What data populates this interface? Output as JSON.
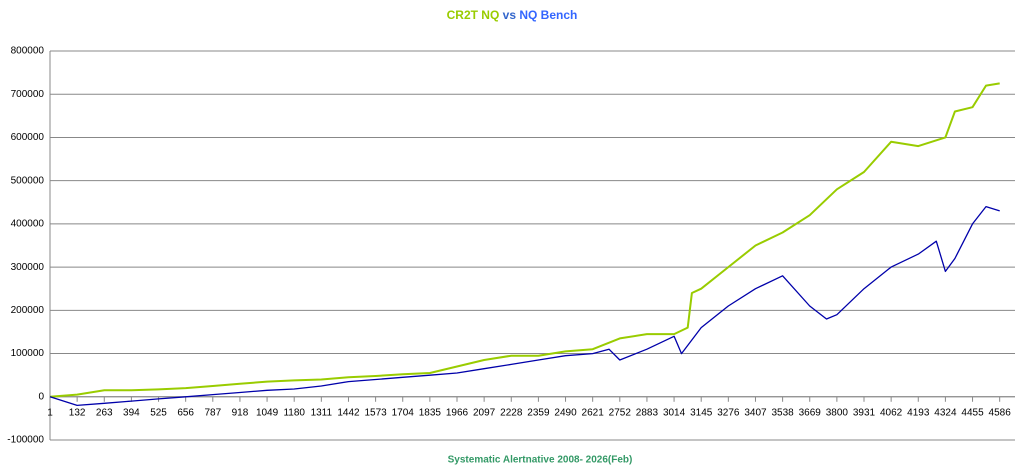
{
  "chart_data": {
    "type": "line",
    "title_connector": "vs",
    "x_label": "Systematic Alertnative 2008- 2026(Feb)",
    "xlim": [
      1,
      4660
    ],
    "xticks": [
      1,
      132,
      263,
      394,
      525,
      656,
      787,
      918,
      1049,
      1180,
      1311,
      1442,
      1573,
      1704,
      1835,
      1966,
      2097,
      2228,
      2359,
      2490,
      2621,
      2752,
      2883,
      3014,
      3145,
      3276,
      3407,
      3538,
      3669,
      3800,
      3931,
      4062,
      4193,
      4324,
      4455,
      4586
    ],
    "ylim": [
      -100000,
      800000
    ],
    "yticks": [
      -100000,
      0,
      100000,
      200000,
      300000,
      400000,
      500000,
      600000,
      700000,
      800000
    ],
    "grid": true,
    "series": [
      {
        "name": "CR2T NQ",
        "color": "#99cc00",
        "x": [
          1,
          132,
          263,
          394,
          525,
          656,
          787,
          918,
          1049,
          1180,
          1311,
          1442,
          1573,
          1704,
          1835,
          1966,
          2097,
          2228,
          2359,
          2490,
          2621,
          2752,
          2883,
          3014,
          3080,
          3100,
          3145,
          3276,
          3407,
          3538,
          3669,
          3800,
          3931,
          4062,
          4193,
          4324,
          4370,
          4455,
          4520,
          4586
        ],
        "values": [
          0,
          5000,
          15000,
          15000,
          17000,
          20000,
          25000,
          30000,
          35000,
          38000,
          40000,
          45000,
          48000,
          52000,
          55000,
          70000,
          85000,
          95000,
          95000,
          105000,
          110000,
          135000,
          145000,
          145000,
          160000,
          240000,
          250000,
          300000,
          350000,
          380000,
          420000,
          480000,
          520000,
          590000,
          580000,
          600000,
          660000,
          670000,
          720000,
          725000
        ]
      },
      {
        "name": "NQ Bench",
        "color": "#0000aa",
        "x": [
          1,
          132,
          263,
          394,
          525,
          656,
          787,
          918,
          1049,
          1180,
          1311,
          1442,
          1573,
          1704,
          1835,
          1966,
          2097,
          2228,
          2359,
          2490,
          2621,
          2700,
          2752,
          2883,
          3014,
          3050,
          3145,
          3276,
          3407,
          3538,
          3669,
          3750,
          3800,
          3931,
          4062,
          4193,
          4280,
          4324,
          4370,
          4455,
          4520,
          4586
        ],
        "values": [
          0,
          -20000,
          -15000,
          -10000,
          -5000,
          0,
          5000,
          10000,
          15000,
          18000,
          25000,
          35000,
          40000,
          45000,
          50000,
          55000,
          65000,
          75000,
          85000,
          95000,
          100000,
          110000,
          85000,
          110000,
          140000,
          100000,
          160000,
          210000,
          250000,
          280000,
          210000,
          180000,
          190000,
          250000,
          300000,
          330000,
          360000,
          290000,
          320000,
          400000,
          440000,
          430000
        ]
      }
    ]
  }
}
